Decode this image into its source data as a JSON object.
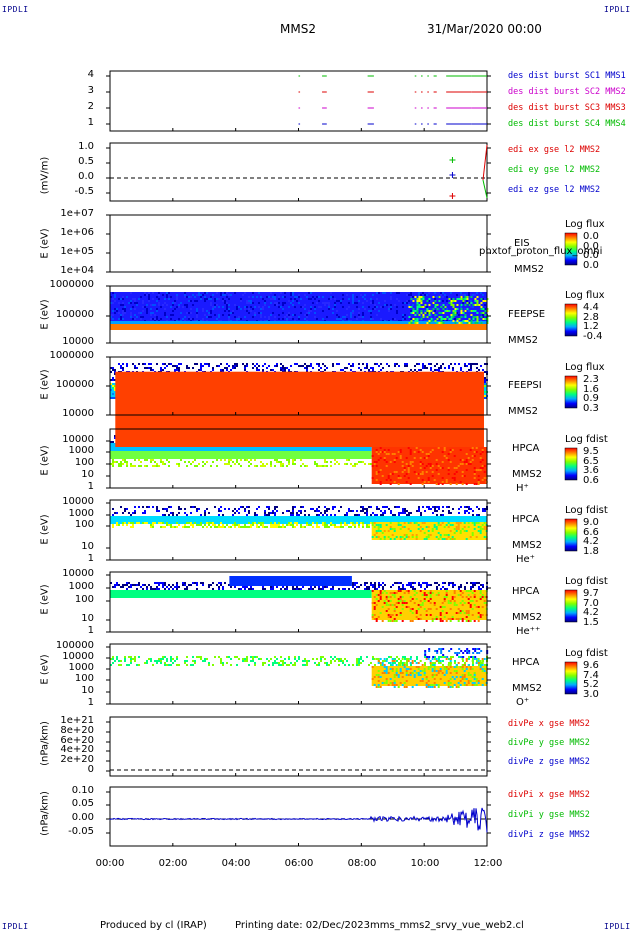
{
  "header": {
    "corner_label": "IPDLI",
    "spacecraft": "MMS2",
    "date": "31/Mar/2020 00:00"
  },
  "x_axis": {
    "ticks": [
      "00:00",
      "02:00",
      "04:00",
      "06:00",
      "08:00",
      "10:00",
      "12:00"
    ]
  },
  "panels": [
    {
      "id": "burst",
      "ylabel": "",
      "yticks": [
        "4",
        "3",
        "2",
        "1"
      ],
      "legend": [
        {
          "text": "des dist burst SC1 MMS1",
          "color": "#0000cc"
        },
        {
          "text": "des dist burst SC2 MMS2",
          "color": "#cc00cc"
        },
        {
          "text": "des dist burst SC3 MMS3",
          "color": "#dd0000"
        },
        {
          "text": "des dist burst SC4 MMS4",
          "color": "#00bb00"
        }
      ]
    },
    {
      "id": "edi",
      "ylabel": "(mV/m)",
      "yticks": [
        "1.0",
        "0.5",
        "0.0",
        "-0.5"
      ],
      "legend": [
        {
          "text": "edi ex gse l2 MMS2",
          "color": "#dd0000"
        },
        {
          "text": "edi ey gse l2 MMS2",
          "color": "#00bb00"
        },
        {
          "text": "edi ez gse l2 MMS2",
          "color": "#0000cc"
        }
      ]
    },
    {
      "id": "eis",
      "ylabel": "E (eV)",
      "yticks": [
        "1e+07",
        "1e+06",
        "1e+05",
        "1e+04"
      ],
      "side": [
        "EIS",
        "MMS2"
      ],
      "overlay": "phxtof_proton_flux_omni",
      "cb_title": "Log flux",
      "cb_values": [
        "0.0",
        "0.0",
        "0.0",
        "0.0"
      ]
    },
    {
      "id": "feepse",
      "ylabel": "E (eV)",
      "yticks": [
        "1000000",
        "100000",
        "10000"
      ],
      "side": [
        "FEEPSE",
        "MMS2"
      ],
      "cb_title": "Log flux",
      "cb_values": [
        "4.4",
        "2.8",
        "1.2",
        "-0.4"
      ]
    },
    {
      "id": "feepsi",
      "ylabel": "E (eV)",
      "yticks": [
        "1000000",
        "100000",
        "10000"
      ],
      "side": [
        "FEEPSI",
        "MMS2"
      ],
      "cb_title": "Log flux",
      "cb_values": [
        "2.3",
        "1.6",
        "0.9",
        "0.3"
      ]
    },
    {
      "id": "hpca_h",
      "ylabel": "E (eV)",
      "yticks": [
        "10000",
        "1000",
        "100",
        "10",
        "1"
      ],
      "side": [
        "HPCA",
        "MMS2",
        "H⁺"
      ],
      "cb_title": "Log fdist",
      "cb_values": [
        "9.5",
        "6.5",
        "3.6",
        "0.6"
      ]
    },
    {
      "id": "hpca_he",
      "ylabel": "E (eV)",
      "yticks": [
        "10000",
        "1000",
        "100",
        "10",
        "1"
      ],
      "side": [
        "HPCA",
        "MMS2",
        "He⁺"
      ],
      "cb_title": "Log fdist",
      "cb_values": [
        "9.0",
        "6.6",
        "4.2",
        "1.8"
      ]
    },
    {
      "id": "hpca_hepp",
      "ylabel": "E (eV)",
      "yticks": [
        "10000",
        "1000",
        "100",
        "10",
        "1"
      ],
      "side": [
        "HPCA",
        "MMS2",
        "He⁺⁺"
      ],
      "cb_title": "Log fdist",
      "cb_values": [
        "9.7",
        "7.0",
        "4.2",
        "1.5"
      ]
    },
    {
      "id": "hpca_o",
      "ylabel": "E (eV)",
      "yticks": [
        "100000",
        "10000",
        "1000",
        "100",
        "10",
        "1"
      ],
      "side": [
        "HPCA",
        "MMS2",
        "O⁺"
      ],
      "cb_title": "Log fdist",
      "cb_values": [
        "9.6",
        "7.4",
        "5.2",
        "3.0"
      ]
    },
    {
      "id": "divpe",
      "ylabel": "(nPa/km)",
      "yticks": [
        "1e+21",
        "8e+20",
        "6e+20",
        "4e+20",
        "2e+20",
        "0"
      ],
      "legend": [
        {
          "text": "divPe x gse MMS2",
          "color": "#dd0000"
        },
        {
          "text": "divPe y gse MMS2",
          "color": "#00bb00"
        },
        {
          "text": "divPe z gse MMS2",
          "color": "#0000cc"
        }
      ]
    },
    {
      "id": "divpi",
      "ylabel": "(nPa/km)",
      "yticks": [
        "0.10",
        "0.05",
        "0.00",
        "-0.05"
      ],
      "legend": [
        {
          "text": "divPi x gse MMS2",
          "color": "#dd0000"
        },
        {
          "text": "divPi y gse MMS2",
          "color": "#00bb00"
        },
        {
          "text": "divPi z gse MMS2",
          "color": "#0000cc"
        }
      ]
    }
  ],
  "footer": {
    "produced": "Produced by cl (IRAP)",
    "printing": "Printing date: 02/Dec/2023",
    "file": "mms_mms2_srvy_vue_web2.cl"
  },
  "chart_data": {
    "type": "heatmap",
    "time_range": [
      "00:00",
      "12:00"
    ],
    "burst_intervals_hours": [
      [
        6.0,
        6.05
      ],
      [
        6.75,
        6.9
      ],
      [
        8.2,
        8.4
      ],
      [
        9.7,
        9.75
      ],
      [
        9.9,
        9.95
      ],
      [
        10.1,
        10.15
      ],
      [
        10.3,
        10.4
      ],
      [
        10.7,
        11.5
      ],
      [
        11.5,
        12.0
      ]
    ],
    "edi_points": [
      {
        "series": "ex",
        "time": "10:55",
        "value": -0.6
      },
      {
        "series": "ey",
        "time": "10:55",
        "value": 0.6
      },
      {
        "series": "ez",
        "time": "10:58",
        "value": 0.1
      }
    ],
    "hpca_change_time": "08:20",
    "colors": {
      "cmap": [
        "#000080",
        "#0000ff",
        "#00aaff",
        "#00ff80",
        "#80ff00",
        "#ffff00",
        "#ff8000",
        "#ff0000"
      ]
    }
  }
}
